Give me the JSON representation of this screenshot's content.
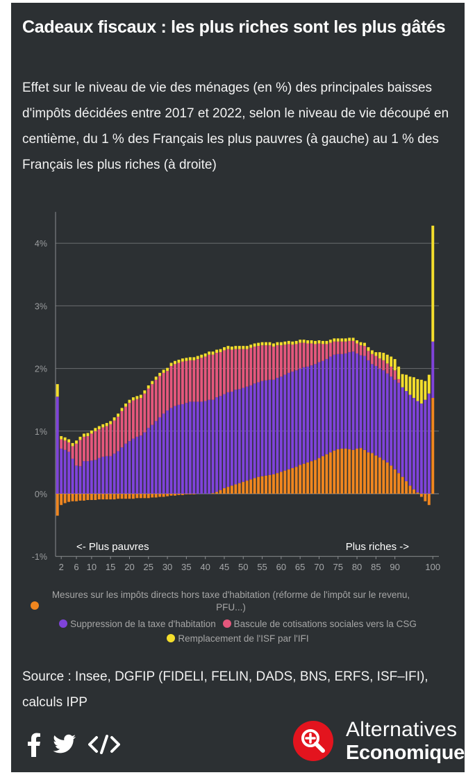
{
  "title": "Cadeaux fiscaux : les plus riches sont les plus gâtés",
  "subtitle": "Effet sur le niveau de vie des ménages (en %) des principales baisses d'impôts décidées entre 2017 et 2022, selon le niveau de vie découpé en centième, du 1 % des Français les plus pauvres (à gauche) au 1 % des Français les plus riches (à droite)",
  "chart_data": {
    "type": "bar",
    "stacked": true,
    "xlabel": "",
    "ylabel": "",
    "ylim": [
      -1,
      4.5
    ],
    "y_ticks": [
      "4%",
      "3%",
      "2%",
      "1%",
      "0%",
      "-1%"
    ],
    "x_ticks": [
      "2",
      "6",
      "10",
      "15",
      "20",
      "25",
      "30",
      "35",
      "40",
      "45",
      "50",
      "55",
      "60",
      "65",
      "70",
      "75",
      "80",
      "85",
      "90",
      "100"
    ],
    "grid": true,
    "legend_position": "bottom",
    "annotations": [
      "<- Plus pauvres",
      "Plus riches ->"
    ],
    "categories": [
      1,
      2,
      3,
      4,
      5,
      6,
      7,
      8,
      9,
      10,
      11,
      12,
      13,
      14,
      15,
      16,
      17,
      18,
      19,
      20,
      21,
      22,
      23,
      24,
      25,
      26,
      27,
      28,
      29,
      30,
      31,
      32,
      33,
      34,
      35,
      36,
      37,
      38,
      39,
      40,
      41,
      42,
      43,
      44,
      45,
      46,
      47,
      48,
      49,
      50,
      51,
      52,
      53,
      54,
      55,
      56,
      57,
      58,
      59,
      60,
      61,
      62,
      63,
      64,
      65,
      66,
      67,
      68,
      69,
      70,
      71,
      72,
      73,
      74,
      75,
      76,
      77,
      78,
      79,
      80,
      81,
      82,
      83,
      84,
      85,
      86,
      87,
      88,
      89,
      90,
      91,
      92,
      93,
      94,
      95,
      96,
      97,
      98,
      99,
      100
    ],
    "series": [
      {
        "name": "Mesures sur les impôts directs hors taxe d'habitation (réforme de l'impôt sur le revenu, PFU...)",
        "color": "#f0861f",
        "values": [
          -0.35,
          -0.18,
          -0.15,
          -0.13,
          -0.12,
          -0.12,
          -0.11,
          -0.11,
          -0.1,
          -0.1,
          -0.1,
          -0.09,
          -0.09,
          -0.09,
          -0.09,
          -0.09,
          -0.08,
          -0.08,
          -0.08,
          -0.08,
          -0.08,
          -0.07,
          -0.07,
          -0.07,
          -0.07,
          -0.06,
          -0.06,
          -0.05,
          -0.05,
          -0.04,
          -0.03,
          -0.03,
          -0.02,
          -0.02,
          -0.01,
          -0.01,
          -0.01,
          0,
          0,
          0,
          0,
          0.01,
          0.03,
          0.06,
          0.09,
          0.11,
          0.13,
          0.15,
          0.17,
          0.19,
          0.21,
          0.23,
          0.25,
          0.27,
          0.28,
          0.29,
          0.3,
          0.31,
          0.33,
          0.35,
          0.37,
          0.39,
          0.41,
          0.43,
          0.46,
          0.48,
          0.5,
          0.52,
          0.54,
          0.57,
          0.6,
          0.63,
          0.66,
          0.69,
          0.71,
          0.72,
          0.72,
          0.71,
          0.7,
          0.72,
          0.73,
          0.7,
          0.66,
          0.65,
          0.61,
          0.58,
          0.54,
          0.5,
          0.45,
          0.39,
          0.33,
          0.27,
          0.2,
          0.13,
          0.07,
          0.02,
          -0.05,
          -0.12,
          -0.18,
          1.53
        ]
      },
      {
        "name": "Suppression de la taxe d'habitation",
        "color": "#7f43da",
        "values": [
          1.55,
          0.72,
          0.7,
          0.67,
          0.56,
          0.45,
          0.44,
          0.52,
          0.52,
          0.53,
          0.54,
          0.57,
          0.59,
          0.6,
          0.6,
          0.64,
          0.68,
          0.74,
          0.8,
          0.84,
          0.88,
          0.91,
          0.93,
          0.98,
          1.05,
          1.1,
          1.16,
          1.22,
          1.28,
          1.33,
          1.37,
          1.4,
          1.42,
          1.43,
          1.45,
          1.47,
          1.47,
          1.47,
          1.47,
          1.48,
          1.5,
          1.49,
          1.51,
          1.5,
          1.5,
          1.51,
          1.5,
          1.51,
          1.5,
          1.5,
          1.5,
          1.5,
          1.51,
          1.51,
          1.52,
          1.52,
          1.52,
          1.51,
          1.52,
          1.52,
          1.53,
          1.54,
          1.54,
          1.54,
          1.54,
          1.54,
          1.53,
          1.53,
          1.53,
          1.53,
          1.52,
          1.52,
          1.53,
          1.53,
          1.52,
          1.51,
          1.52,
          1.55,
          1.57,
          1.52,
          1.48,
          1.5,
          1.47,
          1.42,
          1.43,
          1.42,
          1.43,
          1.42,
          1.42,
          1.43,
          1.44,
          1.43,
          1.44,
          1.45,
          1.46,
          1.46,
          1.44,
          1.5,
          1.6,
          0.9
        ]
      },
      {
        "name": "Bascule de cotisations sociales vers la CSG",
        "color": "#e4577c",
        "values": [
          0,
          0.15,
          0.15,
          0.15,
          0.2,
          0.35,
          0.42,
          0.39,
          0.4,
          0.43,
          0.46,
          0.46,
          0.47,
          0.48,
          0.51,
          0.53,
          0.55,
          0.58,
          0.59,
          0.61,
          0.61,
          0.6,
          0.6,
          0.62,
          0.63,
          0.65,
          0.66,
          0.66,
          0.65,
          0.63,
          0.67,
          0.67,
          0.67,
          0.68,
          0.67,
          0.66,
          0.66,
          0.68,
          0.7,
          0.71,
          0.72,
          0.72,
          0.71,
          0.7,
          0.7,
          0.69,
          0.67,
          0.65,
          0.64,
          0.62,
          0.6,
          0.6,
          0.59,
          0.58,
          0.57,
          0.56,
          0.55,
          0.53,
          0.52,
          0.5,
          0.48,
          0.46,
          0.43,
          0.42,
          0.41,
          0.39,
          0.37,
          0.35,
          0.32,
          0.3,
          0.27,
          0.24,
          0.22,
          0.21,
          0.2,
          0.2,
          0.19,
          0.18,
          0.17,
          0.16,
          0.16,
          0.16,
          0.15,
          0.16,
          0.16,
          0.16,
          0.16,
          0.16,
          0.16,
          0.15,
          0.06,
          0,
          0,
          0,
          0,
          0,
          0,
          0,
          0,
          0
        ]
      },
      {
        "name": "Remplacement de l'ISF par l'IFI",
        "color": "#f4de2c",
        "values": [
          0.2,
          0.05,
          0.05,
          0.05,
          0.05,
          0.05,
          0.05,
          0.05,
          0.05,
          0.05,
          0.05,
          0.05,
          0.05,
          0.05,
          0.05,
          0.05,
          0.05,
          0.05,
          0.05,
          0.05,
          0.05,
          0.05,
          0.05,
          0.05,
          0.05,
          0.05,
          0.05,
          0.05,
          0.05,
          0.05,
          0.05,
          0.05,
          0.05,
          0.05,
          0.05,
          0.05,
          0.05,
          0.05,
          0.05,
          0.05,
          0.05,
          0.05,
          0.05,
          0.05,
          0.05,
          0.05,
          0.05,
          0.05,
          0.05,
          0.05,
          0.05,
          0.05,
          0.05,
          0.05,
          0.05,
          0.05,
          0.05,
          0.05,
          0.05,
          0.05,
          0.05,
          0.05,
          0.05,
          0.05,
          0.05,
          0.05,
          0.05,
          0.05,
          0.05,
          0.05,
          0.05,
          0.05,
          0.05,
          0.05,
          0.05,
          0.05,
          0.05,
          0.05,
          0.05,
          0.05,
          0.05,
          0.05,
          0.06,
          0.06,
          0.06,
          0.1,
          0.12,
          0.14,
          0.16,
          0.18,
          0.2,
          0.21,
          0.26,
          0.29,
          0.33,
          0.35,
          0.38,
          0.3,
          0.3,
          1.85
        ]
      }
    ]
  },
  "legend": {
    "item1": "Mesures sur les impôts directs hors taxe d'habitation (réforme de l'impôt sur le revenu, PFU...)",
    "item2": "Suppression de la taxe d'habitation",
    "item3": "Bascule de cotisations sociales vers la CSG",
    "item4": "Remplacement de l'ISF par l'IFI"
  },
  "source": "Source : Insee, DGFIP (FIDELI, FELIN, DADS, BNS, ERFS, ISF–IFI), calculs IPP",
  "social": {
    "facebook_icon": "facebook-icon",
    "twitter_icon": "twitter-icon",
    "embed_icon": "embed-icon"
  },
  "logo": {
    "line1": "Alternatives",
    "line2": "Economiques",
    "color": "#e3141e"
  }
}
